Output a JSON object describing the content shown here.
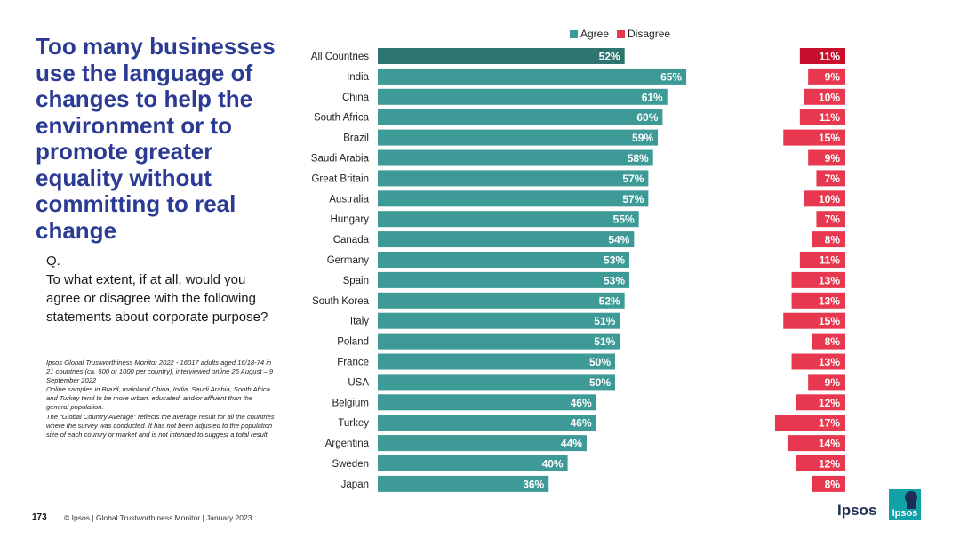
{
  "title": "Too many businesses use the language of changes to help the environment or to promote greater equality without committing to real change",
  "question": {
    "label": "Q.",
    "text": "To what extent, if at all, would you agree or disagree with the following statements about corporate purpose?"
  },
  "notes": [
    "Ipsos Global Trustworthiness Monitor 2022 - 16017 adults aged 16/18-74 in 21 countries (ca. 500 or 1000 per country), interviewed online 26 August – 9 September 2022",
    "Online samples in Brazil, mainland China, India, Saudi Arabia, South Africa and Turkey tend to be more urban, educated, and/or affluent than the general population.",
    "The “Global Country Average” reflects the average result for all the countries where the survey was conducted. It has not been adjusted to the population size of each country or market and is not intended to suggest a total result."
  ],
  "footer": {
    "page_number": "173",
    "text": "© Ipsos | Global Trustworthiness Monitor | January 2023"
  },
  "brand": {
    "wordmark": "Ipsos",
    "logo_text": "Ipsos"
  },
  "colors": {
    "agree": "#3d9a96",
    "agree_highlight": "#2e7470",
    "disagree": "#e8384f",
    "disagree_highlight": "#c8102e",
    "title": "#2b3a93"
  },
  "chart_data": {
    "type": "bar",
    "orientation": "horizontal",
    "title": "",
    "legend": [
      "Agree",
      "Disagree"
    ],
    "legend_position": "top",
    "categories": [
      "All Countries",
      "India",
      "China",
      "South Africa",
      "Brazil",
      "Saudi Arabia",
      "Great Britain",
      "Australia",
      "Hungary",
      "Canada",
      "Germany",
      "Spain",
      "South Korea",
      "Italy",
      "Poland",
      "France",
      "USA",
      "Belgium",
      "Turkey",
      "Argentina",
      "Sweden",
      "Japan"
    ],
    "series": [
      {
        "name": "Agree",
        "values": [
          52,
          65,
          61,
          60,
          59,
          58,
          57,
          57,
          55,
          54,
          53,
          53,
          52,
          51,
          51,
          50,
          50,
          46,
          46,
          44,
          40,
          36
        ]
      },
      {
        "name": "Disagree",
        "values": [
          11,
          9,
          10,
          11,
          15,
          9,
          7,
          10,
          7,
          8,
          11,
          13,
          13,
          15,
          8,
          13,
          9,
          12,
          17,
          14,
          12,
          8
        ]
      }
    ],
    "value_suffix": "%",
    "highlight_category": "All Countries"
  }
}
